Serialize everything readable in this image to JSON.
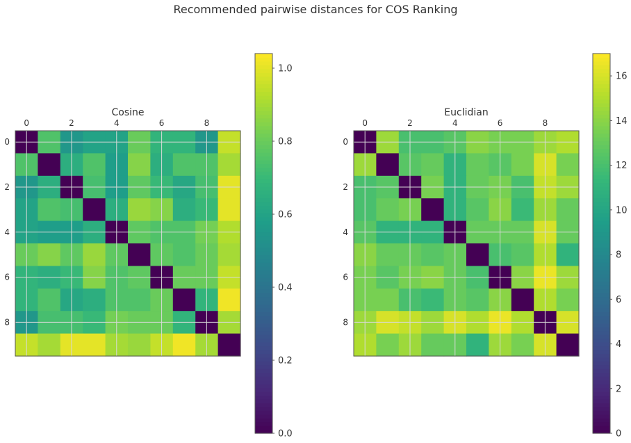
{
  "figure": {
    "title": "Recommended pairwise distances for COS Ranking",
    "colormap": "viridis",
    "grid_color": "#d9d9d9"
  },
  "chart_data": [
    {
      "type": "heatmap",
      "title": "Cosine",
      "xlabel": "",
      "ylabel": "",
      "x_ticks": [
        0,
        2,
        4,
        6,
        8
      ],
      "y_ticks": [
        0,
        2,
        4,
        6,
        8
      ],
      "grid": true,
      "colorbar": {
        "min": 0.0,
        "max": 1.04,
        "ticks": [
          "0.0",
          "0.2",
          "0.4",
          "0.6",
          "0.8",
          "1.0"
        ],
        "tick_values": [
          0,
          0.2,
          0.4,
          0.6,
          0.8,
          1.0
        ]
      },
      "matrix": [
        [
          0.0,
          0.75,
          0.55,
          0.6,
          0.6,
          0.8,
          0.68,
          0.68,
          0.55,
          0.95
        ],
        [
          0.75,
          0.0,
          0.65,
          0.75,
          0.58,
          0.85,
          0.65,
          0.75,
          0.75,
          0.9
        ],
        [
          0.55,
          0.65,
          0.0,
          0.73,
          0.58,
          0.78,
          0.7,
          0.62,
          0.73,
          1.0
        ],
        [
          0.6,
          0.75,
          0.73,
          0.0,
          0.65,
          0.88,
          0.85,
          0.65,
          0.7,
          1.0
        ],
        [
          0.6,
          0.58,
          0.58,
          0.65,
          0.0,
          0.78,
          0.75,
          0.75,
          0.82,
          0.92
        ],
        [
          0.8,
          0.85,
          0.78,
          0.88,
          0.78,
          0.0,
          0.78,
          0.75,
          0.8,
          0.9
        ],
        [
          0.68,
          0.65,
          0.7,
          0.85,
          0.75,
          0.78,
          0.0,
          0.8,
          0.8,
          0.95
        ],
        [
          0.68,
          0.75,
          0.62,
          0.65,
          0.75,
          0.75,
          0.8,
          0.0,
          0.68,
          1.02
        ],
        [
          0.55,
          0.73,
          0.73,
          0.7,
          0.82,
          0.8,
          0.8,
          0.68,
          0.0,
          0.9
        ],
        [
          0.95,
          0.9,
          1.0,
          1.0,
          0.9,
          0.88,
          0.95,
          1.02,
          0.9,
          0.0
        ]
      ]
    },
    {
      "type": "heatmap",
      "title": "Euclidian",
      "xlabel": "",
      "ylabel": "",
      "x_ticks": [
        0,
        2,
        4,
        6,
        8
      ],
      "y_ticks": [
        0,
        2,
        4,
        6,
        8
      ],
      "grid": true,
      "colorbar": {
        "min": 0,
        "max": 17,
        "ticks": [
          "0",
          "2",
          "4",
          "6",
          "8",
          "10",
          "12",
          "14",
          "16"
        ],
        "tick_values": [
          0,
          2,
          4,
          6,
          8,
          10,
          12,
          14,
          16
        ]
      },
      "matrix": [
        [
          0.0,
          14.5,
          12.0,
          12.0,
          12.5,
          14.0,
          13.5,
          13.5,
          14.5,
          15.0
        ],
        [
          14.5,
          0.0,
          12.5,
          13.0,
          11.0,
          13.0,
          12.5,
          13.5,
          16.0,
          13.5
        ],
        [
          12.0,
          12.5,
          0.0,
          13.5,
          11.0,
          13.0,
          13.5,
          12.0,
          15.5,
          14.5
        ],
        [
          12.0,
          13.0,
          13.5,
          0.0,
          11.0,
          12.5,
          14.0,
          11.5,
          14.5,
          13.0
        ],
        [
          12.5,
          11.0,
          11.0,
          11.0,
          0.0,
          13.0,
          13.0,
          13.0,
          16.0,
          13.0
        ],
        [
          14.0,
          13.0,
          13.0,
          12.5,
          13.0,
          0.0,
          12.0,
          12.5,
          15.0,
          11.0
        ],
        [
          13.5,
          12.5,
          13.5,
          14.0,
          13.0,
          12.0,
          0.0,
          14.0,
          16.5,
          14.5
        ],
        [
          13.5,
          13.5,
          12.0,
          11.5,
          13.0,
          12.5,
          14.0,
          0.0,
          15.0,
          13.5
        ],
        [
          14.5,
          16.0,
          15.5,
          14.5,
          16.0,
          15.0,
          16.5,
          15.0,
          0.0,
          16.0
        ],
        [
          15.0,
          13.5,
          14.5,
          13.0,
          13.0,
          11.0,
          14.5,
          13.5,
          16.0,
          0.0
        ]
      ]
    }
  ]
}
